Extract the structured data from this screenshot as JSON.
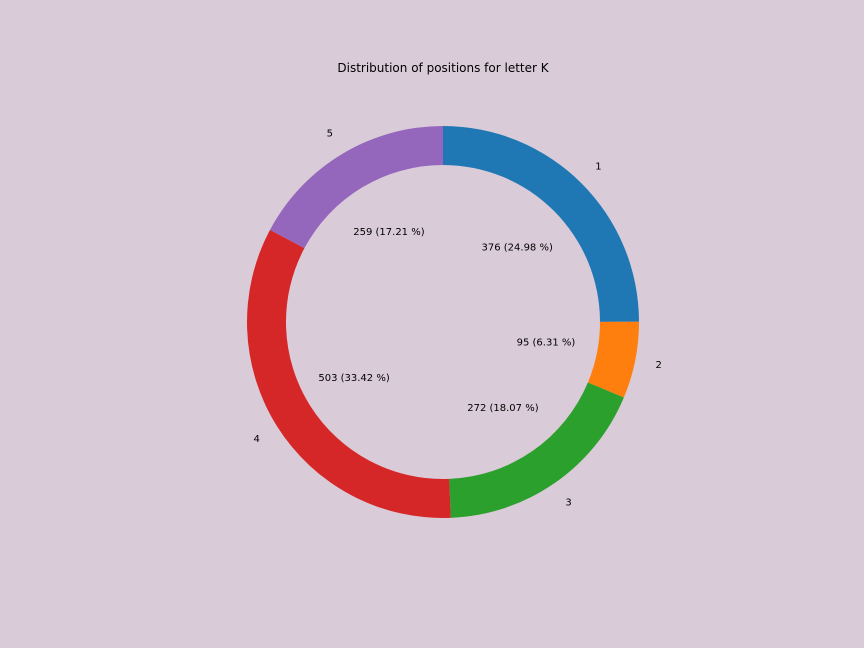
{
  "chart_data": {
    "type": "pie",
    "style": "donut",
    "title": "Distribution of positions for letter K",
    "categories": [
      "1",
      "2",
      "3",
      "4",
      "5"
    ],
    "values": [
      376,
      95,
      272,
      503,
      259
    ],
    "percent_labels": [
      "24.98 %",
      "6.31 %",
      "18.07 %",
      "33.42 %",
      "17.21 %"
    ],
    "inner_labels": [
      "376 (24.98 %)",
      "95 (6.31 %)",
      "272 (18.07 %)",
      "503 (33.42 %)",
      "259 (17.21 %)"
    ],
    "colors": [
      "#1f77b4",
      "#ff7f0e",
      "#2ca02c",
      "#d62728",
      "#9467bd"
    ],
    "start_angle": "top",
    "direction": "clockwise",
    "legend": "none",
    "background": "#dacbd8"
  }
}
